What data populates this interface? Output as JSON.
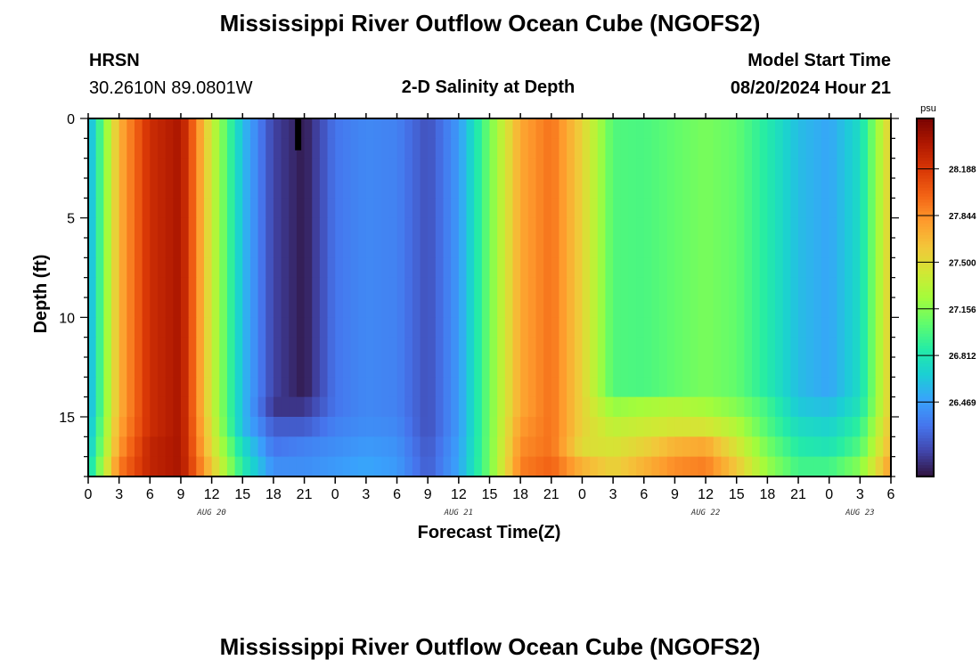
{
  "header": {
    "title": "Mississippi River Outflow Ocean Cube (NGOFS2)",
    "station": "HRSN",
    "coords": "30.2610N  89.0801W",
    "plot_title": "2-D Salinity at Depth",
    "model_start_label": "Model Start Time",
    "model_start_value": "08/20/2024 Hour 21"
  },
  "footer": {
    "title": "Mississippi River Outflow Ocean Cube (NGOFS2)"
  },
  "chart_data": {
    "type": "heatmap",
    "title": "2-D Salinity at Depth",
    "xlabel": "Forecast Time(Z)",
    "ylabel": "Depth (ft)",
    "x_unit": "forecast hours from Aug 20 00Z",
    "xlim": [
      0,
      78
    ],
    "ylim": [
      0,
      18
    ],
    "x_tick_labels": [
      "0",
      "3",
      "6",
      "9",
      "12",
      "15",
      "18",
      "21",
      "0",
      "3",
      "6",
      "9",
      "12",
      "15",
      "18",
      "21",
      "0",
      "3",
      "6",
      "9",
      "12",
      "15",
      "18",
      "21",
      "0",
      "3",
      "6"
    ],
    "y_ticks": [
      0,
      5,
      10,
      15
    ],
    "y_tick_labels": [
      "0",
      "5",
      "10",
      "15"
    ],
    "date_labels": [
      {
        "label": "AUG 20",
        "hour": 12
      },
      {
        "label": "AUG 21",
        "hour": 36
      },
      {
        "label": "AUG 22",
        "hour": 60
      },
      {
        "label": "AUG 23",
        "hour": 75
      }
    ],
    "x_hours": [
      0,
      3,
      6,
      9,
      12,
      15,
      18,
      21,
      24,
      27,
      30,
      33,
      36,
      39,
      42,
      45,
      48,
      51,
      54,
      57,
      60,
      63,
      66,
      69,
      72,
      75,
      78
    ],
    "depth_layers": [
      {
        "depth_from": 0,
        "depth_to": 14,
        "values": [
          26.5,
          27.7,
          28.25,
          28.4,
          27.4,
          26.6,
          26.1,
          25.95,
          26.3,
          26.38,
          26.35,
          26.15,
          26.45,
          27.1,
          27.75,
          27.95,
          27.55,
          27.0,
          26.98,
          27.05,
          27.12,
          27.05,
          26.85,
          26.6,
          26.5,
          26.75,
          27.6
        ]
      },
      {
        "depth_from": 14,
        "depth_to": 15,
        "values": [
          26.5,
          27.7,
          28.25,
          28.4,
          27.4,
          26.6,
          26.05,
          26.05,
          26.3,
          26.38,
          26.35,
          26.15,
          26.45,
          27.1,
          27.75,
          27.95,
          27.55,
          27.2,
          27.25,
          27.3,
          27.25,
          27.15,
          26.95,
          26.65,
          26.6,
          26.8,
          27.6
        ]
      },
      {
        "depth_from": 15,
        "depth_to": 16,
        "values": [
          26.55,
          27.75,
          28.25,
          28.4,
          27.45,
          26.6,
          26.2,
          26.2,
          26.35,
          26.4,
          26.38,
          26.15,
          26.45,
          27.1,
          27.8,
          27.95,
          27.55,
          27.35,
          27.4,
          27.45,
          27.45,
          27.3,
          27.0,
          26.75,
          26.7,
          26.9,
          27.65
        ]
      },
      {
        "depth_from": 16,
        "depth_to": 17,
        "values": [
          26.6,
          27.8,
          28.3,
          28.4,
          27.5,
          26.75,
          26.3,
          26.35,
          26.4,
          26.45,
          26.42,
          26.18,
          26.48,
          27.1,
          27.85,
          27.95,
          27.5,
          27.45,
          27.55,
          27.7,
          27.75,
          27.45,
          27.1,
          26.85,
          26.8,
          27.0,
          27.7
        ]
      },
      {
        "depth_from": 17,
        "depth_to": 18,
        "values": [
          26.7,
          27.9,
          28.3,
          28.4,
          27.6,
          26.85,
          26.4,
          26.4,
          26.45,
          26.5,
          26.45,
          26.2,
          26.5,
          27.1,
          27.9,
          28.0,
          27.7,
          27.55,
          27.7,
          27.85,
          27.9,
          27.6,
          27.2,
          26.95,
          26.95,
          27.15,
          27.8
        ]
      }
    ],
    "now_marker": {
      "hour": 20.4,
      "depth_to": 1.6
    },
    "colorbar": {
      "unit": "psu",
      "range": [
        25.92,
        28.56
      ],
      "ticks": [
        26.469,
        26.812,
        27.156,
        27.5,
        27.844,
        28.188
      ],
      "tick_labels": [
        "26.469",
        "26.812",
        "27.156",
        "27.500",
        "27.844",
        "28.188"
      ],
      "colors": [
        "#30123b",
        "#4145ab",
        "#4675ed",
        "#39a2fc",
        "#1bcfd4",
        "#24eca6",
        "#61fc6c",
        "#a4fc3b",
        "#d1e834",
        "#f3c63a",
        "#fe9b2d",
        "#f36315",
        "#d93806",
        "#b11901",
        "#7a0402"
      ]
    }
  }
}
